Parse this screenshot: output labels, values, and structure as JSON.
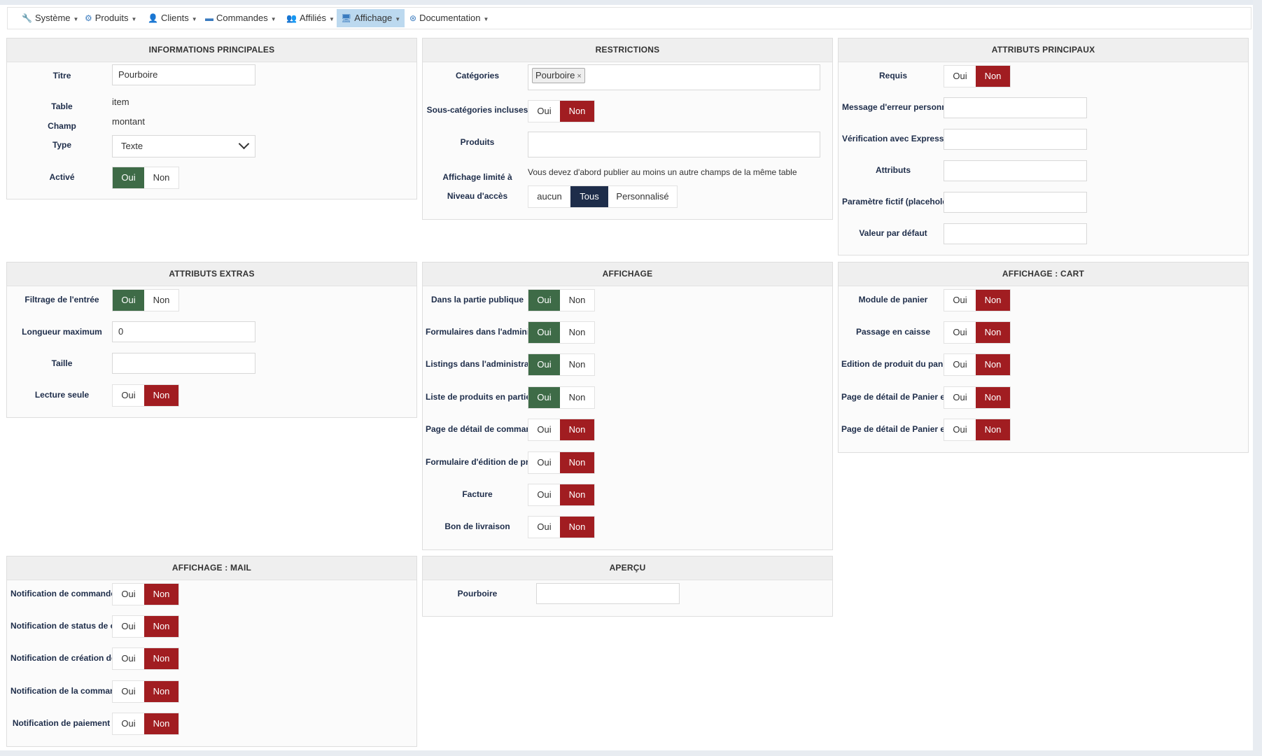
{
  "menu": [
    {
      "label": "Système",
      "icon": "wrench-icon",
      "glyph": "🔧"
    },
    {
      "label": "Produits",
      "icon": "cubes-icon",
      "glyph": "⚙"
    },
    {
      "label": "Clients",
      "icon": "user-icon",
      "glyph": "👤"
    },
    {
      "label": "Commandes",
      "icon": "credit-card-icon",
      "glyph": "▬"
    },
    {
      "label": "Affiliés",
      "icon": "users-icon",
      "glyph": "👥"
    },
    {
      "label": "Affichage",
      "icon": "desktop-icon",
      "glyph": "🖥"
    },
    {
      "label": "Documentation",
      "icon": "life-ring-icon",
      "glyph": "⊛"
    }
  ],
  "yes": "Oui",
  "no": "Non",
  "colors": {
    "green": "#3e6b47",
    "red": "#a11d21",
    "navy": "#1e2d4a",
    "active_menu": "#bcd9ef"
  },
  "info": {
    "title": "INFORMATIONS PRINCIPALES",
    "titre_label": "Titre",
    "titre_value": "Pourboire",
    "table_label": "Table",
    "table_value": "item",
    "champ_label": "Champ",
    "champ_value": "montant",
    "type_label": "Type",
    "type_value": "Texte",
    "active_label": "Activé"
  },
  "restrictions": {
    "title": "RESTRICTIONS",
    "categories_label": "Catégories",
    "category_tag": "Pourboire",
    "subcat_label": "Sous-catégories incluses",
    "products_label": "Produits",
    "limited_label": "Affichage limité à",
    "limited_note": "Vous devez d'abord publier au moins un autre champs de la même table",
    "access_label": "Niveau d'accès",
    "access_options": [
      "aucun",
      "Tous",
      "Personnalisé"
    ]
  },
  "main_attrs": {
    "title": "ATTRIBUTS PRINCIPAUX",
    "required_label": "Requis",
    "error_label": "Message d'erreur personnalisé",
    "regex_label": "Vérification avec Expression régulière",
    "attributes_label": "Attributs",
    "placeholder_label": "Paramètre fictif (placeholder)",
    "default_label": "Valeur par défaut"
  },
  "extra_attrs": {
    "title": "ATTRIBUTS EXTRAS",
    "filter_label": "Filtrage de l'entrée",
    "maxlen_label": "Longueur maximum",
    "maxlen_value": "0",
    "size_label": "Taille",
    "readonly_label": "Lecture seule"
  },
  "display": {
    "title": "AFFICHAGE",
    "rows": [
      {
        "label": "Dans la partie publique",
        "state": "yes"
      },
      {
        "label": "Formulaires dans l'administration",
        "state": "yes"
      },
      {
        "label": "Listings dans l'administration",
        "state": "yes"
      },
      {
        "label": "Liste de produits en partie publique",
        "state": "yes"
      },
      {
        "label": "Page de détail de commande",
        "state": "no"
      },
      {
        "label": "Formulaire d'édition de produit",
        "state": "no"
      },
      {
        "label": "Facture",
        "state": "no"
      },
      {
        "label": "Bon de livraison",
        "state": "no"
      }
    ]
  },
  "cart": {
    "title": "AFFICHAGE : CART",
    "rows": [
      {
        "label": "Module de panier",
        "state": "no"
      },
      {
        "label": "Passage en caisse",
        "state": "no"
      },
      {
        "label": "Edition de produit du panier",
        "state": "no"
      },
      {
        "label": "Page de détail de Panier en",
        "state": "no"
      },
      {
        "label": "Page de détail de Panier en",
        "state": "no"
      }
    ]
  },
  "mail": {
    "title": "AFFICHAGE : MAIL",
    "rows": [
      {
        "label": "Notification de commande",
        "state": "no"
      },
      {
        "label": "Notification de status de commande",
        "state": "no"
      },
      {
        "label": "Notification de création de compte",
        "state": "no"
      },
      {
        "label": "Notification de la commande",
        "state": "no"
      },
      {
        "label": "Notification de paiement",
        "state": "no"
      }
    ]
  },
  "preview": {
    "title": "APERÇU",
    "label": "Pourboire"
  }
}
